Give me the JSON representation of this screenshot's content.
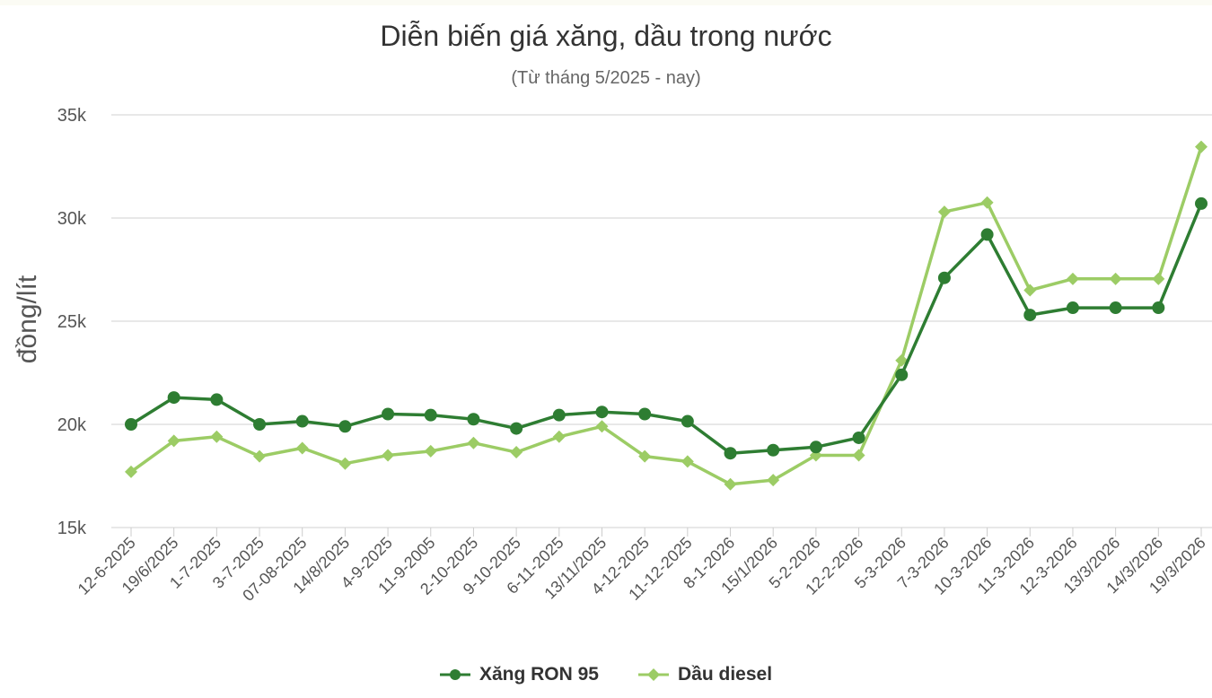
{
  "chart_data": {
    "type": "line",
    "title": "Diễn biến giá xăng, dầu trong nước",
    "subtitle": "(Từ tháng 5/2025 - nay)",
    "ylabel": "đồng/lít",
    "xlabel": "",
    "ylim": [
      15000,
      35000
    ],
    "yticks": [
      15000,
      20000,
      25000,
      30000,
      35000
    ],
    "ytick_labels": [
      "15k",
      "20k",
      "25k",
      "30k",
      "35k"
    ],
    "grid": true,
    "legend": "bottom-center",
    "categories": [
      "12-6-2025",
      "19/6/2025",
      "1-7-2025",
      "3-7-2025",
      "07-08-2025",
      "14/8/2025",
      "4-9-2025",
      "11-9-2005",
      "2-10-2025",
      "9-10-2025",
      "6-11-2025",
      "13/11/2025",
      "4-12-2025",
      "11-12-2025",
      "8-1-2026",
      "15/1/2026",
      "5-2-2026",
      "12-2-2026",
      "5-3-2026",
      "7-3-2026",
      "10-3-2026",
      "11-3-2026",
      "12-3-2026",
      "13/3/2026",
      "14/3/2026",
      "19/3/2026"
    ],
    "series": [
      {
        "name": "Xăng RON 95",
        "color": "#2e7d32",
        "marker": "circle",
        "values": [
          20000,
          21300,
          21200,
          20000,
          20150,
          19900,
          20500,
          20450,
          20250,
          19800,
          20450,
          20600,
          20500,
          20150,
          18600,
          18750,
          18900,
          19350,
          22400,
          27100,
          29200,
          25300,
          25650,
          25650,
          25650,
          30700
        ]
      },
      {
        "name": "Dầu diesel",
        "color": "#9ccc65",
        "marker": "diamond",
        "values": [
          17700,
          19200,
          19400,
          18450,
          18850,
          18100,
          18500,
          18700,
          19100,
          18650,
          19400,
          19900,
          18450,
          18200,
          17100,
          17300,
          18500,
          18500,
          23100,
          30300,
          30750,
          26500,
          27050,
          27050,
          27050,
          33450
        ]
      }
    ]
  }
}
